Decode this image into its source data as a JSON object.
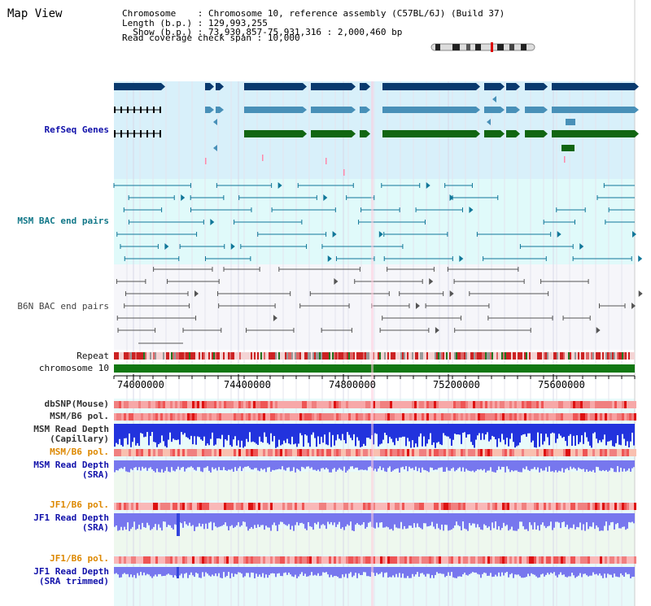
{
  "header": {
    "title": "Map View",
    "chromosome_label": "Chromosome",
    "chromosome_value": "Chromosome 10, reference assembly (C57BL/6J) (Build 37)",
    "length_label": "Length (b.p.)",
    "length_value": "129,993,255",
    "show_label": "Show (b.p.)",
    "show_value": "73,930,857-75,931,316 : 2,000,460 bp",
    "coverage_label": "Read coverage check span",
    "coverage_value": "10,000"
  },
  "tracks": {
    "refseq": "RefSeq Genes",
    "msm_bac": "MSM BAC end pairs",
    "b6n_bac": "B6N BAC end pairs",
    "repeat": "Repeat",
    "chromosome": "chromosome 10",
    "dbsnp": "dbSNP(Mouse)",
    "msm_b6_pol": "MSM/B6 pol.",
    "msm_read_depth_cap_1": "MSM Read Depth",
    "msm_read_depth_cap_2": "(Capillary)",
    "msm_b6_pol_2": "MSM/B6 pol.",
    "msm_read_depth_sra_1": "MSM Read Depth",
    "msm_read_depth_sra_2": "(SRA)",
    "jf1_b6_pol": "JF1/B6 pol.",
    "jf1_read_depth_sra_1": "JF1 Read Depth",
    "jf1_read_depth_sra_2": "(SRA)",
    "jf1_b6_pol_2": "JF1/B6 pol.",
    "jf1_read_depth_trim_1": "JF1 Read Depth",
    "jf1_read_depth_trim_2": "(SRA trimmed)"
  },
  "axis": {
    "ticks": [
      "74000000",
      "74400000",
      "74800000",
      "75200000",
      "75600000"
    ]
  },
  "colors": {
    "refseq_bg": "#d8f0fa",
    "msm_bg": "#e0fafa",
    "b6n_bg": "#f6f6fa",
    "gene_dark": "#0a3a6e",
    "gene_mid": "#4890b8",
    "gene_green": "#116611",
    "chromosome_bar": "#117711",
    "depth_blue": "#2233dd",
    "depth_light": "#7777ee"
  }
}
